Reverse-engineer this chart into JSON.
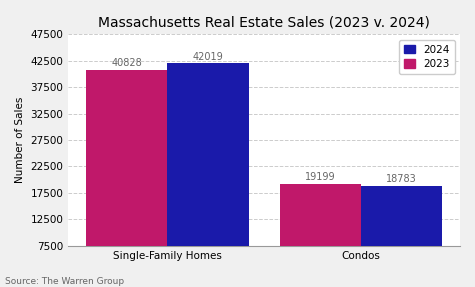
{
  "title": "Massachusetts Real Estate Sales (2023 v. 2024)",
  "categories": [
    "Single-Family Homes",
    "Condos"
  ],
  "series": {
    "2023": [
      40828,
      19199
    ],
    "2024": [
      42019,
      18783
    ]
  },
  "colors": {
    "2023": "#c0186a",
    "2024": "#1a1aaa"
  },
  "ylabel": "Number of Sales",
  "ylim": [
    7500,
    47500
  ],
  "yticks": [
    7500,
    12500,
    17500,
    22500,
    27500,
    32500,
    37500,
    42500,
    47500
  ],
  "source": "Source: The Warren Group",
  "bar_width": 0.42,
  "background_color": "#f0f0f0",
  "plot_bg_color": "#ffffff",
  "grid_color": "#cccccc",
  "title_fontsize": 10,
  "label_fontsize": 7.5,
  "tick_fontsize": 7.5,
  "annotation_fontsize": 7,
  "source_fontsize": 6.5
}
